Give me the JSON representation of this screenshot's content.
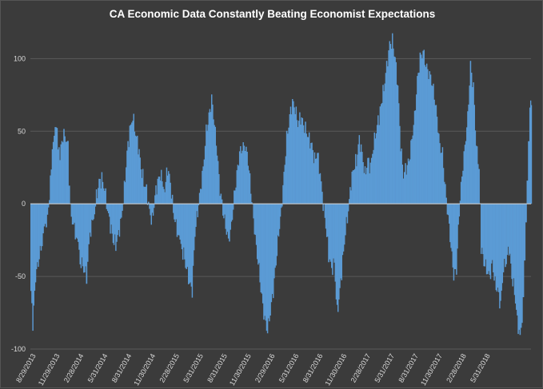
{
  "chart_data": {
    "type": "bar",
    "title": "CA Economic Data Constantly Beating Economist Expectations",
    "ylim": [
      -100,
      120
    ],
    "yticks": [
      100,
      50,
      0,
      -50,
      -100
    ],
    "grid": true,
    "legend": "none",
    "colors": {
      "bar": "#5b9bd5",
      "background": "#3b3b3b",
      "grid": "#5a5a5a",
      "text": "#d9d9d9"
    },
    "x_tick_labels": [
      "8/29/2013",
      "11/29/2013",
      "2/28/2014",
      "5/31/2014",
      "8/31/2014",
      "11/30/2014",
      "2/28/2015",
      "5/31/2015",
      "8/31/2015",
      "11/30/2015",
      "2/29/2016",
      "5/31/2016",
      "8/31/2016",
      "11/30/2016",
      "2/28/2017",
      "5/31/2017",
      "8/31/2017",
      "11/30/2017",
      "2/28/2018",
      "5/31/2018"
    ],
    "x_range": [
      "2013-08-29",
      "2018-08-31"
    ],
    "series": [
      {
        "points": [
          [
            "2013-08-29",
            -60
          ],
          [
            "2013-09-05",
            -85
          ],
          [
            "2013-09-15",
            -50
          ],
          [
            "2013-09-25",
            -40
          ],
          [
            "2013-10-05",
            -30
          ],
          [
            "2013-10-20",
            -15
          ],
          [
            "2013-11-01",
            -5
          ],
          [
            "2013-11-08",
            15
          ],
          [
            "2013-11-15",
            35
          ],
          [
            "2013-11-22",
            45
          ],
          [
            "2013-11-29",
            55
          ],
          [
            "2013-12-06",
            40
          ],
          [
            "2013-12-13",
            35
          ],
          [
            "2013-12-20",
            45
          ],
          [
            "2013-12-31",
            48
          ],
          [
            "2014-01-10",
            40
          ],
          [
            "2014-01-15",
            10
          ],
          [
            "2014-01-20",
            -5
          ],
          [
            "2014-01-31",
            -15
          ],
          [
            "2014-02-14",
            -25
          ],
          [
            "2014-02-28",
            -40
          ],
          [
            "2014-03-10",
            -45
          ],
          [
            "2014-03-20",
            -50
          ],
          [
            "2014-04-01",
            -20
          ],
          [
            "2014-04-15",
            -10
          ],
          [
            "2014-04-25",
            5
          ],
          [
            "2014-05-05",
            15
          ],
          [
            "2014-05-15",
            17
          ],
          [
            "2014-05-25",
            10
          ],
          [
            "2014-06-05",
            -5
          ],
          [
            "2014-06-15",
            -15
          ],
          [
            "2014-06-25",
            -25
          ],
          [
            "2014-07-05",
            -28
          ],
          [
            "2014-07-15",
            -20
          ],
          [
            "2014-07-25",
            -10
          ],
          [
            "2014-08-05",
            10
          ],
          [
            "2014-08-15",
            35
          ],
          [
            "2014-08-25",
            50
          ],
          [
            "2014-09-05",
            60
          ],
          [
            "2014-09-15",
            48
          ],
          [
            "2014-09-25",
            40
          ],
          [
            "2014-10-05",
            25
          ],
          [
            "2014-10-15",
            15
          ],
          [
            "2014-10-25",
            10
          ],
          [
            "2014-11-05",
            -5
          ],
          [
            "2014-11-15",
            -12
          ],
          [
            "2014-11-25",
            5
          ],
          [
            "2014-12-05",
            15
          ],
          [
            "2014-12-15",
            20
          ],
          [
            "2014-12-31",
            10
          ],
          [
            "2015-01-10",
            25
          ],
          [
            "2015-01-20",
            15
          ],
          [
            "2015-01-31",
            -5
          ],
          [
            "2015-02-10",
            -15
          ],
          [
            "2015-02-28",
            -30
          ],
          [
            "2015-03-10",
            -35
          ],
          [
            "2015-03-20",
            -45
          ],
          [
            "2015-03-31",
            -55
          ],
          [
            "2015-04-10",
            -60
          ],
          [
            "2015-04-20",
            -20
          ],
          [
            "2015-04-30",
            -5
          ],
          [
            "2015-05-10",
            10
          ],
          [
            "2015-05-20",
            25
          ],
          [
            "2015-05-31",
            50
          ],
          [
            "2015-06-10",
            60
          ],
          [
            "2015-06-20",
            72
          ],
          [
            "2015-06-30",
            55
          ],
          [
            "2015-07-10",
            35
          ],
          [
            "2015-07-20",
            10
          ],
          [
            "2015-07-31",
            -5
          ],
          [
            "2015-08-10",
            -15
          ],
          [
            "2015-08-20",
            -25
          ],
          [
            "2015-08-31",
            -15
          ],
          [
            "2015-09-10",
            5
          ],
          [
            "2015-09-20",
            20
          ],
          [
            "2015-09-30",
            35
          ],
          [
            "2015-10-10",
            38
          ],
          [
            "2015-10-20",
            40
          ],
          [
            "2015-10-31",
            30
          ],
          [
            "2015-11-10",
            10
          ],
          [
            "2015-11-20",
            -10
          ],
          [
            "2015-11-30",
            -30
          ],
          [
            "2015-12-10",
            -45
          ],
          [
            "2015-12-20",
            -65
          ],
          [
            "2015-12-31",
            -80
          ],
          [
            "2016-01-10",
            -88
          ],
          [
            "2016-01-20",
            -75
          ],
          [
            "2016-01-31",
            -60
          ],
          [
            "2016-02-10",
            -40
          ],
          [
            "2016-02-20",
            -20
          ],
          [
            "2016-02-29",
            -5
          ],
          [
            "2016-03-10",
            20
          ],
          [
            "2016-03-20",
            45
          ],
          [
            "2016-03-31",
            60
          ],
          [
            "2016-04-10",
            70
          ],
          [
            "2016-04-20",
            65
          ],
          [
            "2016-04-30",
            55
          ],
          [
            "2016-05-10",
            60
          ],
          [
            "2016-05-20",
            55
          ],
          [
            "2016-05-31",
            50
          ],
          [
            "2016-06-10",
            45
          ],
          [
            "2016-06-20",
            40
          ],
          [
            "2016-06-30",
            30
          ],
          [
            "2016-07-10",
            35
          ],
          [
            "2016-07-20",
            20
          ],
          [
            "2016-07-31",
            0
          ],
          [
            "2016-08-10",
            -15
          ],
          [
            "2016-08-20",
            -35
          ],
          [
            "2016-08-31",
            -45
          ],
          [
            "2016-09-10",
            -40
          ],
          [
            "2016-09-20",
            -75
          ],
          [
            "2016-09-30",
            -60
          ],
          [
            "2016-10-10",
            -40
          ],
          [
            "2016-10-20",
            -20
          ],
          [
            "2016-10-31",
            -5
          ],
          [
            "2016-11-10",
            15
          ],
          [
            "2016-11-20",
            25
          ],
          [
            "2016-11-30",
            30
          ],
          [
            "2016-12-10",
            45
          ],
          [
            "2016-12-20",
            35
          ],
          [
            "2016-12-31",
            20
          ],
          [
            "2017-01-10",
            30
          ],
          [
            "2017-01-20",
            25
          ],
          [
            "2017-01-31",
            40
          ],
          [
            "2017-02-10",
            50
          ],
          [
            "2017-02-20",
            60
          ],
          [
            "2017-02-28",
            70
          ],
          [
            "2017-03-10",
            80
          ],
          [
            "2017-03-20",
            95
          ],
          [
            "2017-03-31",
            110
          ],
          [
            "2017-04-10",
            112
          ],
          [
            "2017-04-20",
            100
          ],
          [
            "2017-04-30",
            80
          ],
          [
            "2017-05-10",
            40
          ],
          [
            "2017-05-20",
            20
          ],
          [
            "2017-05-31",
            25
          ],
          [
            "2017-06-10",
            30
          ],
          [
            "2017-06-20",
            45
          ],
          [
            "2017-06-30",
            60
          ],
          [
            "2017-07-10",
            85
          ],
          [
            "2017-07-20",
            100
          ],
          [
            "2017-07-31",
            105
          ],
          [
            "2017-08-10",
            95
          ],
          [
            "2017-08-20",
            90
          ],
          [
            "2017-08-31",
            85
          ],
          [
            "2017-09-10",
            75
          ],
          [
            "2017-09-20",
            60
          ],
          [
            "2017-09-30",
            40
          ],
          [
            "2017-10-10",
            35
          ],
          [
            "2017-10-20",
            10
          ],
          [
            "2017-10-31",
            -10
          ],
          [
            "2017-11-10",
            -30
          ],
          [
            "2017-11-20",
            -50
          ],
          [
            "2017-11-30",
            -45
          ],
          [
            "2017-12-10",
            -5
          ],
          [
            "2017-12-20",
            20
          ],
          [
            "2017-12-31",
            40
          ],
          [
            "2018-01-10",
            60
          ],
          [
            "2018-01-20",
            95
          ],
          [
            "2018-01-31",
            80
          ],
          [
            "2018-02-10",
            40
          ],
          [
            "2018-02-20",
            25
          ],
          [
            "2018-02-28",
            -30
          ],
          [
            "2018-03-10",
            -40
          ],
          [
            "2018-03-20",
            -45
          ],
          [
            "2018-03-31",
            -50
          ],
          [
            "2018-04-10",
            -40
          ],
          [
            "2018-04-20",
            -55
          ],
          [
            "2018-04-30",
            -60
          ],
          [
            "2018-05-10",
            -70
          ],
          [
            "2018-05-20",
            -45
          ],
          [
            "2018-05-31",
            -40
          ],
          [
            "2018-06-10",
            -30
          ],
          [
            "2018-06-20",
            -50
          ],
          [
            "2018-06-30",
            -60
          ],
          [
            "2018-07-10",
            -80
          ],
          [
            "2018-07-20",
            -92
          ],
          [
            "2018-07-31",
            -70
          ],
          [
            "2018-08-05",
            -40
          ],
          [
            "2018-08-10",
            -15
          ],
          [
            "2018-08-15",
            20
          ],
          [
            "2018-08-20",
            45
          ],
          [
            "2018-08-25",
            72
          ],
          [
            "2018-08-31",
            68
          ]
        ]
      }
    ]
  }
}
